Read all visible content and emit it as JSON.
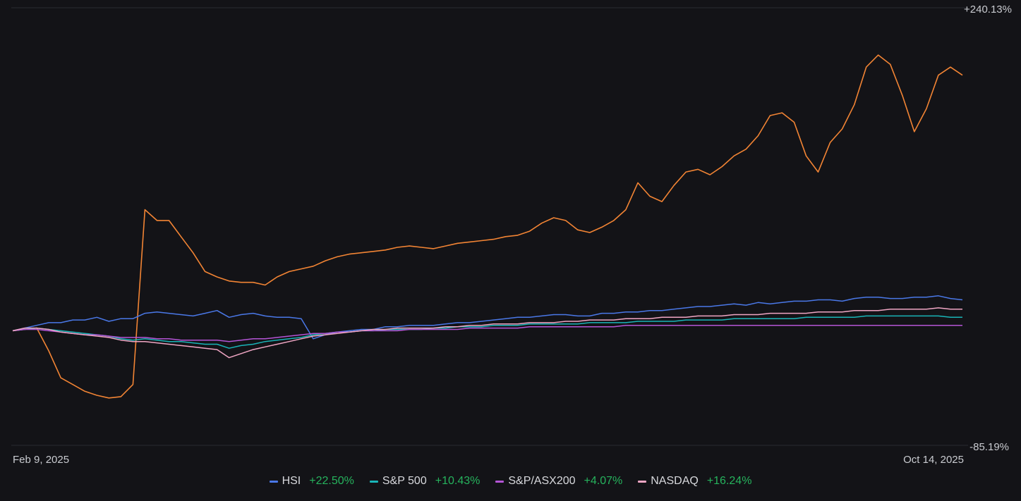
{
  "chart_data": {
    "type": "line",
    "x_start_label": "Feb 9, 2025",
    "x_end_label": "Oct 14, 2025",
    "y_max_label": "+240.13%",
    "y_min_label": "-85.19%",
    "ylim": [
      -85.19,
      240.13
    ],
    "ylabel": "",
    "xlabel": "",
    "grid": false,
    "legend_position": "bottom-center",
    "series": [
      {
        "name": "HSI",
        "change": "+22.50%",
        "color": "#4a78e8",
        "values": [
          0,
          2,
          4,
          6,
          6,
          8,
          8,
          10,
          7,
          9,
          9,
          13,
          14,
          13,
          12,
          11,
          13,
          15,
          10,
          12,
          13,
          11,
          10,
          10,
          9,
          -6,
          -3,
          -1,
          0,
          1,
          1,
          3,
          3,
          4,
          4,
          4,
          5,
          6,
          6,
          7,
          8,
          9,
          10,
          10,
          11,
          12,
          12,
          11,
          11,
          13,
          13,
          14,
          14,
          15,
          15,
          16,
          17,
          18,
          18,
          19,
          20,
          19,
          21,
          20,
          21,
          22,
          22,
          23,
          23,
          22,
          24,
          25,
          25,
          24,
          24,
          25,
          25,
          26,
          24,
          23
        ]
      },
      {
        "name": "S&P 500",
        "change": "+10.43%",
        "color": "#19b5b8",
        "values": [
          0,
          1,
          2,
          1,
          0,
          -1,
          -2,
          -3,
          -4,
          -6,
          -7,
          -6,
          -7,
          -8,
          -8,
          -9,
          -10,
          -10,
          -13,
          -11,
          -10,
          -8,
          -7,
          -6,
          -5,
          -3,
          -2,
          -1,
          -1,
          0,
          0,
          1,
          1,
          1,
          1,
          2,
          2,
          3,
          3,
          3,
          4,
          4,
          4,
          5,
          5,
          5,
          5,
          5,
          6,
          6,
          6,
          6,
          7,
          7,
          7,
          7,
          8,
          8,
          8,
          8,
          9,
          9,
          9,
          9,
          9,
          9,
          10,
          10,
          10,
          10,
          10,
          11,
          11,
          11,
          11,
          11,
          11,
          11,
          10,
          10
        ]
      },
      {
        "name": "S&P/ASX200",
        "change": "+4.07%",
        "color": "#b455d6",
        "values": [
          0,
          1,
          1,
          0,
          -1,
          -2,
          -3,
          -3,
          -4,
          -5,
          -5,
          -5,
          -6,
          -6,
          -7,
          -7,
          -7,
          -7,
          -8,
          -7,
          -6,
          -6,
          -5,
          -4,
          -3,
          -2,
          -2,
          -1,
          -1,
          0,
          0,
          0,
          0,
          1,
          1,
          1,
          1,
          1,
          2,
          2,
          2,
          2,
          2,
          3,
          3,
          3,
          3,
          3,
          3,
          3,
          3,
          4,
          4,
          4,
          4,
          4,
          4,
          4,
          4,
          4,
          4,
          4,
          4,
          4,
          4,
          4,
          4,
          4,
          4,
          4,
          4,
          4,
          4,
          4,
          4,
          4,
          4,
          4,
          4,
          4
        ]
      },
      {
        "name": "NASDAQ",
        "change": "+16.24%",
        "color": "#f0a6c4",
        "values": [
          0,
          2,
          2,
          1,
          -1,
          -2,
          -3,
          -4,
          -5,
          -7,
          -8,
          -8,
          -9,
          -10,
          -11,
          -12,
          -13,
          -14,
          -20,
          -17,
          -14,
          -12,
          -10,
          -8,
          -6,
          -4,
          -3,
          -2,
          -1,
          0,
          1,
          1,
          2,
          2,
          2,
          2,
          3,
          3,
          4,
          4,
          5,
          5,
          5,
          6,
          6,
          6,
          7,
          7,
          8,
          8,
          8,
          9,
          9,
          9,
          10,
          10,
          10,
          11,
          11,
          11,
          12,
          12,
          12,
          13,
          13,
          13,
          13,
          14,
          14,
          14,
          15,
          15,
          15,
          16,
          16,
          16,
          16,
          17,
          16,
          16
        ]
      },
      {
        "name": "",
        "change": "",
        "color": "#f28434",
        "values": [
          0,
          1,
          2,
          -15,
          -35,
          -40,
          -45,
          -48,
          -50,
          -49,
          -40,
          90,
          82,
          82,
          70,
          58,
          44,
          40,
          37,
          36,
          36,
          34,
          40,
          44,
          46,
          48,
          52,
          55,
          57,
          58,
          59,
          60,
          62,
          63,
          62,
          61,
          63,
          65,
          66,
          67,
          68,
          70,
          71,
          74,
          80,
          84,
          82,
          75,
          73,
          77,
          82,
          90,
          110,
          100,
          96,
          108,
          118,
          120,
          116,
          122,
          130,
          135,
          145,
          160,
          162,
          155,
          130,
          118,
          140,
          150,
          168,
          196,
          205,
          198,
          175,
          148,
          165,
          190,
          196,
          190
        ]
      }
    ]
  }
}
